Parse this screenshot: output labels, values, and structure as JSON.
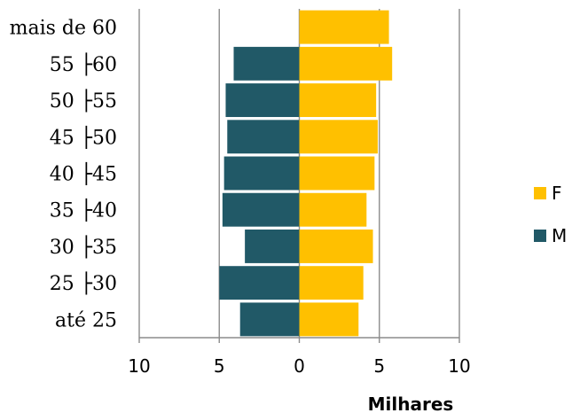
{
  "chart_data": {
    "type": "bar",
    "orientation": "horizontal",
    "layout": "population-pyramid",
    "categories": [
      "mais de 60",
      "55 ├60",
      "50 ├55",
      "45 ├50",
      "40 ├45",
      "35 ├40",
      "30 ├35",
      "25 ├30",
      "até 25"
    ],
    "series": [
      {
        "name": "F",
        "color": "#FFC000",
        "side": "right",
        "values": [
          5.6,
          5.8,
          4.8,
          4.9,
          4.7,
          4.2,
          4.6,
          4.0,
          3.7
        ]
      },
      {
        "name": "M",
        "color": "#215967",
        "side": "left",
        "values": [
          null,
          4.1,
          4.6,
          4.5,
          4.7,
          4.8,
          3.4,
          5.0,
          3.7
        ]
      }
    ],
    "xlabel": "Milhares",
    "xlim": [
      -10,
      10
    ],
    "xticks": [
      -10,
      -5,
      0,
      5,
      10
    ],
    "xtick_labels": [
      "10",
      "5",
      "0",
      "5",
      "10"
    ],
    "grid": "vertical",
    "legend_position": "right"
  }
}
